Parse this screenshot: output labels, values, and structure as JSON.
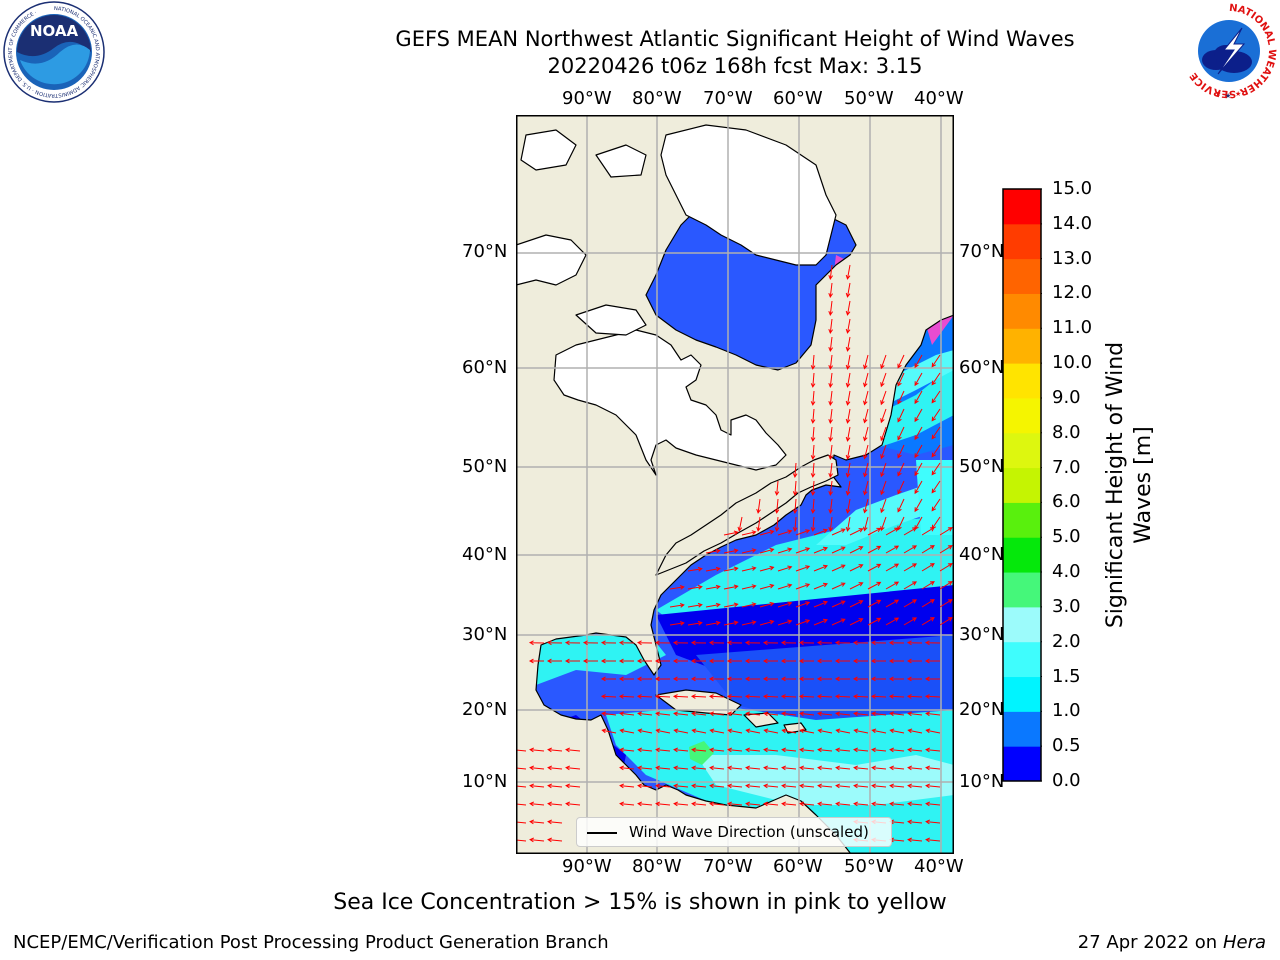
{
  "title": {
    "line1": "GEFS MEAN Northwest Atlantic Significant Height of Wind Waves",
    "line2": "20220426 t06z 168h fcst   Max: 3.15"
  },
  "logos": {
    "noaa_text": "NOAA",
    "noaa_ring": "NATIONAL OCEANIC AND ATMOSPHERIC ADMINISTRATION · U.S. DEPARTMENT OF COMMERCE ·",
    "nws_ring": "NATIONAL WEATHER SERVICE"
  },
  "map": {
    "lon_labels": [
      "90°W",
      "80°W",
      "70°W",
      "60°W",
      "50°W",
      "40°W"
    ],
    "lat_labels": [
      "70°N",
      "60°N",
      "50°N",
      "40°N",
      "30°N",
      "20°N",
      "10°N"
    ],
    "colors": {
      "land": "#efeddc",
      "ice_free_land": "#ffffff",
      "arrow": "#ff0000",
      "grid": "#b0b0b0"
    },
    "legend_label": "Wind Wave Direction (unscaled)"
  },
  "colorbar": {
    "label": "Significant Height of Wind Waves [m]",
    "ticks": [
      "0.0",
      "0.5",
      "1.0",
      "1.5",
      "2.0",
      "3.0",
      "4.0",
      "5.0",
      "6.0",
      "7.0",
      "8.0",
      "9.0",
      "10.0",
      "11.0",
      "12.0",
      "13.0",
      "14.0",
      "15.0"
    ],
    "colors": [
      "#0000ff",
      "#0a78ff",
      "#00f4ff",
      "#3ffdfd",
      "#9cfbfb",
      "#45f77a",
      "#05e80b",
      "#59f00d",
      "#c5f402",
      "#ddf70f",
      "#f5f500",
      "#ffe400",
      "#ffb200",
      "#ff8a00",
      "#ff6400",
      "#ff3c00",
      "#ff0000"
    ]
  },
  "note": "Sea Ice Concentration > 15% is shown in pink to yellow",
  "footer": {
    "left": "NCEP/EMC/Verification Post Processing Product Generation Branch",
    "date": "27 Apr 2022 on ",
    "host": "Hera"
  }
}
